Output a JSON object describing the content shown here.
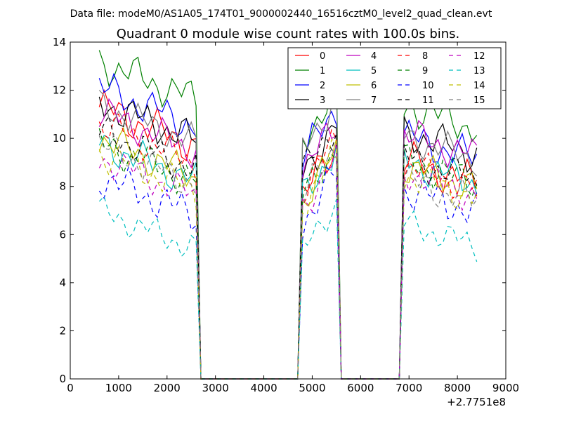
{
  "header": {
    "filename": "Data file: modeM0/AS1A05_174T01_9000002440_16516cztM0_level2_quad_clean.evt"
  },
  "chart_data": {
    "type": "line",
    "title": "Quadrant 0 module wise count rates with 100.0s bins.",
    "xlabel": "",
    "ylabel": "",
    "x_offset_label": "+2.7751e8",
    "xlim": [
      0,
      9000
    ],
    "ylim": [
      0,
      14
    ],
    "xticks": [
      0,
      1000,
      2000,
      3000,
      4000,
      5000,
      6000,
      7000,
      8000,
      9000
    ],
    "yticks": [
      0,
      2,
      4,
      6,
      8,
      10,
      12,
      14
    ],
    "legend_position": "top-right",
    "legend_columns": 4,
    "series": [
      {
        "name": "0",
        "color": "#ff0000",
        "style": "solid",
        "base": [
          10.5,
          8.6,
          8.6
        ],
        "amp": 0.95,
        "phase": 0.0
      },
      {
        "name": "1",
        "color": "#008000",
        "style": "solid",
        "base": [
          12.4,
          11.0,
          10.9
        ],
        "amp": 0.9,
        "phase": 1.1
      },
      {
        "name": "2",
        "color": "#0000ff",
        "style": "solid",
        "base": [
          11.3,
          10.2,
          9.6
        ],
        "amp": 0.9,
        "phase": 2.3
      },
      {
        "name": "3",
        "color": "#000000",
        "style": "solid",
        "base": [
          10.7,
          9.6,
          9.8
        ],
        "amp": 0.9,
        "phase": 3.1
      },
      {
        "name": "4",
        "color": "#bf00bf",
        "style": "solid",
        "base": [
          10.3,
          9.6,
          9.7
        ],
        "amp": 0.85,
        "phase": 4.2
      },
      {
        "name": "5",
        "color": "#00bfbf",
        "style": "solid",
        "base": [
          9.0,
          8.6,
          8.6
        ],
        "amp": 0.85,
        "phase": 5.0
      },
      {
        "name": "6",
        "color": "#bfbf00",
        "style": "solid",
        "base": [
          9.2,
          8.4,
          8.4
        ],
        "amp": 0.85,
        "phase": 5.9
      },
      {
        "name": "7",
        "color": "#808080",
        "style": "solid",
        "base": [
          10.6,
          10.6,
          9.6
        ],
        "amp": 0.8,
        "phase": 0.7
      },
      {
        "name": "8",
        "color": "#ff0000",
        "style": "dashed",
        "base": [
          9.8,
          8.9,
          8.4
        ],
        "amp": 0.85,
        "phase": 1.7
      },
      {
        "name": "9",
        "color": "#008000",
        "style": "dashed",
        "base": [
          9.0,
          8.6,
          8.6
        ],
        "amp": 0.85,
        "phase": 2.6
      },
      {
        "name": "10",
        "color": "#0000ff",
        "style": "dashed",
        "base": [
          7.6,
          7.5,
          7.4
        ],
        "amp": 0.9,
        "phase": 3.6
      },
      {
        "name": "11",
        "color": "#000000",
        "style": "dashed",
        "base": [
          9.5,
          9.6,
          8.7
        ],
        "amp": 0.85,
        "phase": 4.6
      },
      {
        "name": "12",
        "color": "#bf00bf",
        "style": "dashed",
        "base": [
          8.4,
          8.2,
          8.1
        ],
        "amp": 0.8,
        "phase": 5.4
      },
      {
        "name": "13",
        "color": "#00bfbf",
        "style": "dashed",
        "base": [
          6.2,
          6.3,
          6.0
        ],
        "amp": 0.7,
        "phase": 0.3
      },
      {
        "name": "14",
        "color": "#bfbf00",
        "style": "dashed",
        "base": [
          8.6,
          8.4,
          8.0
        ],
        "amp": 0.85,
        "phase": 1.4
      },
      {
        "name": "15",
        "color": "#808080",
        "style": "dashed",
        "base": [
          8.9,
          8.6,
          7.8
        ],
        "amp": 0.85,
        "phase": 2.0
      }
    ],
    "segments": [
      {
        "start": 600,
        "end": 2600,
        "trend": -1.0
      },
      {
        "start": 4800,
        "end": 5500,
        "trend": 1.3
      },
      {
        "start": 6900,
        "end": 8400,
        "trend": -0.6
      }
    ],
    "gaps": [
      {
        "from": 2600,
        "to": 2700
      },
      {
        "from": 4700,
        "to": 4800
      },
      {
        "from": 5500,
        "to": 5600
      },
      {
        "from": 6800,
        "to": 6900
      }
    ],
    "zero_range": [
      2700,
      6800
    ],
    "x_step": 100
  }
}
